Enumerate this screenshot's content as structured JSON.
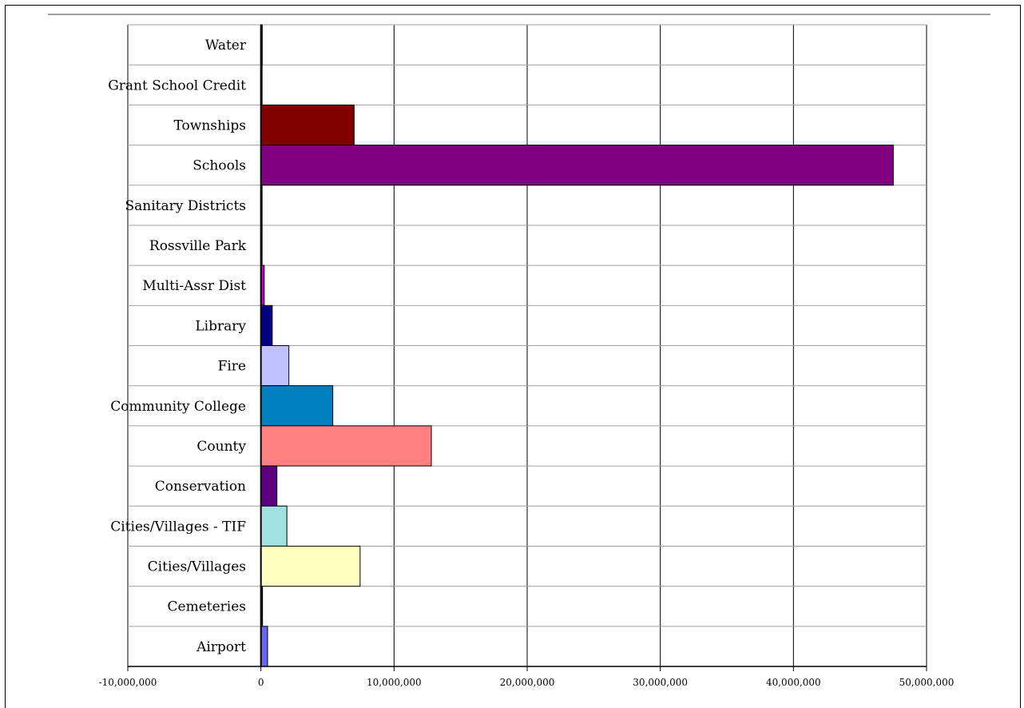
{
  "chart_data": {
    "type": "bar",
    "orientation": "horizontal",
    "categories": [
      "Water",
      "Grant School Credit",
      "Townships",
      "Schools",
      "Sanitary Districts",
      "Rossville Park",
      "Multi-Assr Dist",
      "Library",
      "Fire",
      "Community College",
      "County",
      "Conservation",
      "Cities/Villages - TIF",
      "Cities/Villages",
      "Cemeteries",
      "Airport"
    ],
    "values": [
      100000,
      20000,
      7000000,
      47500000,
      60000,
      60000,
      250000,
      850000,
      2100000,
      5400000,
      12800000,
      1200000,
      1950000,
      7450000,
      120000,
      500000
    ],
    "colors": [
      "#000000",
      "#000000",
      "#800000",
      "#800080",
      "#000000",
      "#000000",
      "#C000C0",
      "#000080",
      "#C0C0FF",
      "#0080C0",
      "#FF8080",
      "#600080",
      "#A0E0E0",
      "#FFFFC0",
      "#000000",
      "#6666EE"
    ],
    "xlim": [
      -10000000,
      50000000
    ],
    "xticks": [
      -10000000,
      0,
      10000000,
      20000000,
      30000000,
      40000000,
      50000000
    ],
    "xtick_labels": [
      "-10,000,000",
      "0",
      "10,000,000",
      "20,000,000",
      "30,000,000",
      "40,000,000",
      "50,000,000"
    ],
    "grid": true,
    "legend": "none",
    "title": "",
    "xlabel": "",
    "ylabel": ""
  }
}
